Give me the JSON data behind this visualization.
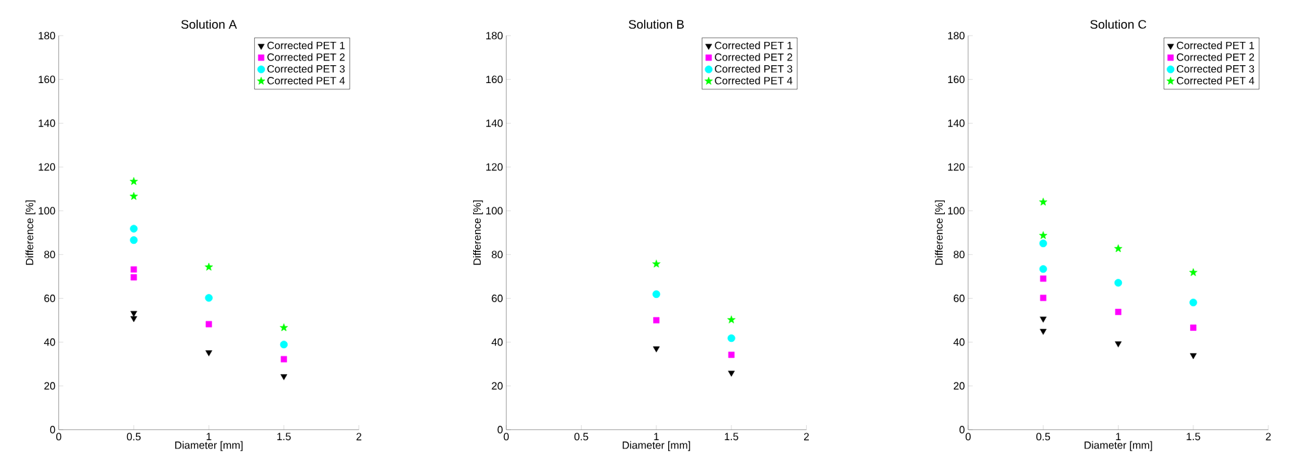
{
  "chart_data": [
    {
      "type": "scatter",
      "title": "Solution A",
      "xlabel": "Diameter [mm]",
      "ylabel": "Difference [%]",
      "xlim": [
        0,
        2
      ],
      "xticks": [
        0,
        0.5,
        1,
        1.5,
        2
      ],
      "ylim": [
        0,
        180
      ],
      "yticks": [
        0,
        20,
        40,
        60,
        80,
        100,
        120,
        140,
        160,
        180
      ],
      "legend": "top right",
      "series": [
        {
          "name": "Corrected PET 1",
          "color": "#000000",
          "marker": "triangle",
          "x": [
            0.5,
            0.5,
            1,
            1.5
          ],
          "values": [
            53.3,
            50.9,
            35.3,
            24.4
          ]
        },
        {
          "name": "Corrected PET 2",
          "color": "#ff00ff",
          "marker": "square",
          "x": [
            0.5,
            0.5,
            1,
            1.5
          ],
          "values": [
            73.2,
            69.6,
            48.2,
            32.2
          ]
        },
        {
          "name": "Corrected PET 3",
          "color": "#00ffff",
          "marker": "circle",
          "x": [
            0.5,
            0.5,
            1,
            1.5
          ],
          "values": [
            91.8,
            86.6,
            60.2,
            38.9
          ]
        },
        {
          "name": "Corrected PET 4",
          "color": "#00ff00",
          "marker": "star",
          "x": [
            0.5,
            0.5,
            1,
            1.5
          ],
          "values": [
            113.4,
            106.6,
            74.3,
            46.6
          ]
        }
      ]
    },
    {
      "type": "scatter",
      "title": "Solution B",
      "xlabel": "Diameter [mm]",
      "ylabel": "Difference [%]",
      "xlim": [
        0,
        2
      ],
      "xticks": [
        0,
        0.5,
        1,
        1.5,
        2
      ],
      "ylim": [
        0,
        180
      ],
      "yticks": [
        0,
        20,
        40,
        60,
        80,
        100,
        120,
        140,
        160,
        180
      ],
      "legend": "top right",
      "series": [
        {
          "name": "Corrected PET 1",
          "color": "#000000",
          "marker": "triangle",
          "x": [
            1,
            1.5
          ],
          "values": [
            37.1,
            26.0
          ]
        },
        {
          "name": "Corrected PET 2",
          "color": "#ff00ff",
          "marker": "square",
          "x": [
            1,
            1.5
          ],
          "values": [
            50.0,
            34.2
          ]
        },
        {
          "name": "Corrected PET 3",
          "color": "#00ffff",
          "marker": "circle",
          "x": [
            1,
            1.5
          ],
          "values": [
            61.9,
            41.8
          ]
        },
        {
          "name": "Corrected PET 4",
          "color": "#00ff00",
          "marker": "star",
          "x": [
            1,
            1.5
          ],
          "values": [
            75.7,
            50.2
          ]
        }
      ]
    },
    {
      "type": "scatter",
      "title": "Solution C",
      "xlabel": "Diameter [mm]",
      "ylabel": "Difference [%]",
      "xlim": [
        0,
        2
      ],
      "xticks": [
        0,
        0.5,
        1,
        1.5,
        2
      ],
      "ylim": [
        0,
        180
      ],
      "yticks": [
        0,
        20,
        40,
        60,
        80,
        100,
        120,
        140,
        160,
        180
      ],
      "legend": "top right",
      "series": [
        {
          "name": "Corrected PET 1",
          "color": "#000000",
          "marker": "triangle",
          "x": [
            0.5,
            0.5,
            1,
            1.5
          ],
          "values": [
            50.7,
            45.1,
            39.4,
            34.0
          ]
        },
        {
          "name": "Corrected PET 2",
          "color": "#ff00ff",
          "marker": "square",
          "x": [
            0.5,
            0.5,
            1,
            1.5
          ],
          "values": [
            69.0,
            60.2,
            53.8,
            46.6
          ]
        },
        {
          "name": "Corrected PET 3",
          "color": "#00ffff",
          "marker": "circle",
          "x": [
            0.5,
            0.5,
            1,
            1.5
          ],
          "values": [
            85.1,
            73.4,
            67.1,
            58.1
          ]
        },
        {
          "name": "Corrected PET 4",
          "color": "#00ff00",
          "marker": "star",
          "x": [
            0.5,
            0.5,
            1,
            1.5
          ],
          "values": [
            104.0,
            88.7,
            82.7,
            71.8
          ]
        }
      ]
    }
  ]
}
